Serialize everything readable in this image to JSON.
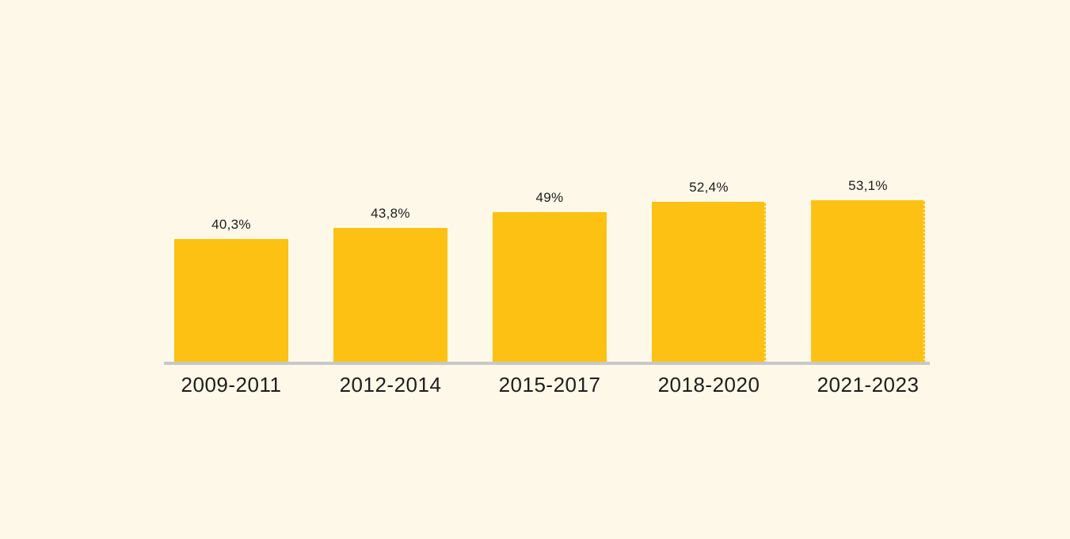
{
  "chart_data": {
    "type": "bar",
    "categories": [
      "2009-2011",
      "2012-2014",
      "2015-2017",
      "2018-2020",
      "2021-2023"
    ],
    "values": [
      40.3,
      43.8,
      49,
      52.4,
      53.1
    ],
    "value_labels": [
      "40,3%",
      "43,8%",
      "49%",
      "52,4%",
      "53,1%"
    ],
    "value_label_position": "above-bar",
    "grid": false,
    "y_axis_shown": false,
    "baseline_axis_shown": true,
    "dotted_right_edge_bar_indices": [
      3,
      4
    ],
    "colors": {
      "bar": "#FCC113",
      "background": "#FDF8E8",
      "axis": "#C8C8C8",
      "text": "#1D1D1D"
    }
  }
}
